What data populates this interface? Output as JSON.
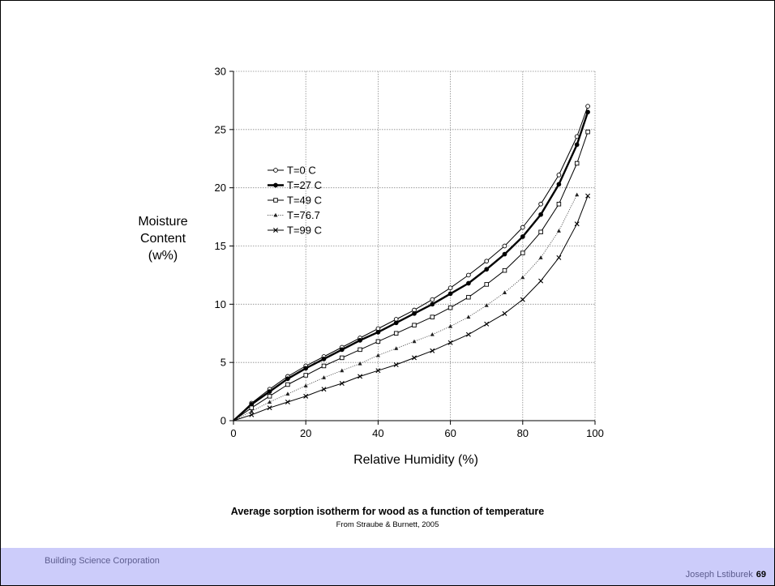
{
  "chart_data": {
    "type": "line",
    "xlabel": "Relative Humidity (%)",
    "ylabel_lines": [
      "Moisture",
      "Content",
      "(w%)"
    ],
    "xlim": [
      0,
      100
    ],
    "ylim": [
      0,
      30
    ],
    "xticks": [
      0,
      20,
      40,
      60,
      80,
      100
    ],
    "yticks": [
      0,
      5,
      10,
      15,
      20,
      25,
      30
    ],
    "grid": true,
    "legend_position": "upper-left",
    "x": [
      0,
      5,
      10,
      15,
      20,
      25,
      30,
      35,
      40,
      45,
      50,
      55,
      60,
      65,
      70,
      75,
      80,
      85,
      90,
      95,
      98
    ],
    "series": [
      {
        "name": "T=0 C",
        "marker": "open-circle",
        "line": "thin",
        "values": [
          0,
          1.5,
          2.7,
          3.8,
          4.7,
          5.5,
          6.3,
          7.1,
          7.9,
          8.7,
          9.5,
          10.4,
          11.4,
          12.5,
          13.7,
          15.0,
          16.6,
          18.6,
          21.1,
          24.4,
          27.0
        ]
      },
      {
        "name": "T=27 C",
        "marker": "filled-circle",
        "line": "thick",
        "values": [
          0,
          1.4,
          2.5,
          3.6,
          4.5,
          5.3,
          6.1,
          6.9,
          7.6,
          8.4,
          9.2,
          10.0,
          10.9,
          11.8,
          13.0,
          14.3,
          15.8,
          17.7,
          20.3,
          23.7,
          26.5
        ]
      },
      {
        "name": "T=49 C",
        "marker": "open-square",
        "line": "thin",
        "values": [
          0,
          1.1,
          2.1,
          3.1,
          3.9,
          4.7,
          5.4,
          6.1,
          6.8,
          7.5,
          8.2,
          8.9,
          9.7,
          10.6,
          11.7,
          12.9,
          14.4,
          16.2,
          18.6,
          22.1,
          24.8
        ]
      },
      {
        "name": "T=76.7",
        "marker": "filled-triangle",
        "line": "dotted",
        "values": [
          0,
          0.8,
          1.6,
          2.3,
          3.0,
          3.7,
          4.3,
          4.9,
          5.6,
          6.2,
          6.8,
          7.4,
          8.1,
          8.9,
          9.9,
          11.0,
          12.3,
          14.0,
          16.3,
          19.4,
          null
        ]
      },
      {
        "name": "T=99 C",
        "marker": "cross",
        "line": "thin",
        "values": [
          0,
          0.5,
          1.1,
          1.6,
          2.1,
          2.7,
          3.2,
          3.8,
          4.3,
          4.8,
          5.4,
          6.0,
          6.7,
          7.4,
          8.3,
          9.2,
          10.4,
          12.0,
          14.0,
          16.9,
          19.3
        ]
      }
    ]
  },
  "caption": {
    "title": "Average sorption isotherm for wood as a function of temperature",
    "source": "From Straube & Burnett, 2005"
  },
  "footer": {
    "organization": "Building Science Corporation",
    "author": "Joseph Lstiburek",
    "page_number": "69",
    "background_color": "#ccccfa",
    "text_color": "#5c5c8e"
  }
}
